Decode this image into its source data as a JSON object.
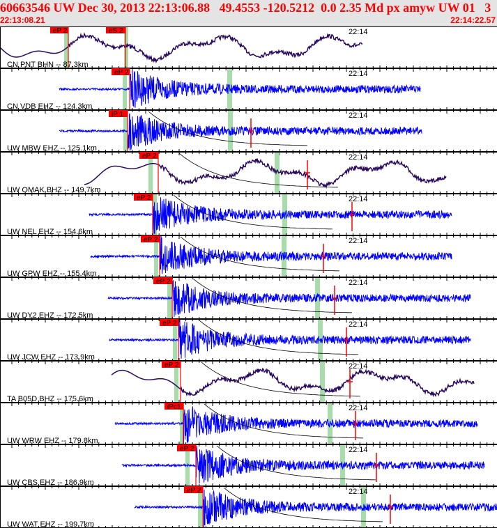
{
  "header": {
    "title": "60663546 UW Dec 30, 2013 22:13:06.88   49.4553 -120.5212  0.0 2.35 Md px amyw UW 01   3",
    "start_time": "22:13:08.21",
    "end_time": "22:14:22.57"
  },
  "colors": {
    "header_text": "#ff0000",
    "short_period": "#0000ff",
    "broadband": "#2a0a5e",
    "pick": "#ff0000",
    "window": "#a8dcaa",
    "background_header": "#e4e4e4"
  },
  "minute_label": "22:14",
  "channels": [
    {
      "label": "CN PNT BHN -- 87.3km",
      "type": "broadband",
      "picks": [
        "eP 2",
        "eS 2"
      ]
    },
    {
      "label": "CN VDB EHZ -- 124.3km",
      "type": "short_period",
      "picks": [
        "eP 2"
      ]
    },
    {
      "label": "UW MBW EHZ -- 125.1km",
      "type": "short_period",
      "picks": [
        "iP 1"
      ]
    },
    {
      "label": "UW OMAK BHZ -- 149.7km",
      "type": "broadband",
      "picks": [
        "eP 2"
      ]
    },
    {
      "label": "UW NEL EHZ -- 154.6km",
      "type": "short_period",
      "picks": [
        "eP 2"
      ]
    },
    {
      "label": "UW GPW EHZ -- 155.4km",
      "type": "short_period",
      "picks": [
        "eP 2"
      ]
    },
    {
      "label": "UW DY2 EHZ -- 172.5km",
      "type": "short_period",
      "picks": [
        "eP 2"
      ]
    },
    {
      "label": "UW JCW EHZ -- 173.9km",
      "type": "short_period",
      "picks": [
        "eP 2"
      ]
    },
    {
      "label": "TA B05D BHZ -- 175.6km",
      "type": "broadband",
      "picks": [
        "eP 2"
      ]
    },
    {
      "label": "UW WRW EHZ -- 179.8km",
      "type": "short_period",
      "picks": [
        "iPc1"
      ]
    },
    {
      "label": "UW CBS EHZ -- 186.9km",
      "type": "short_period",
      "picks": [
        "eP 2"
      ]
    },
    {
      "label": "UW WAT EHZ -- 199.7km",
      "type": "short_period",
      "picks": [
        "eP 2"
      ]
    }
  ]
}
